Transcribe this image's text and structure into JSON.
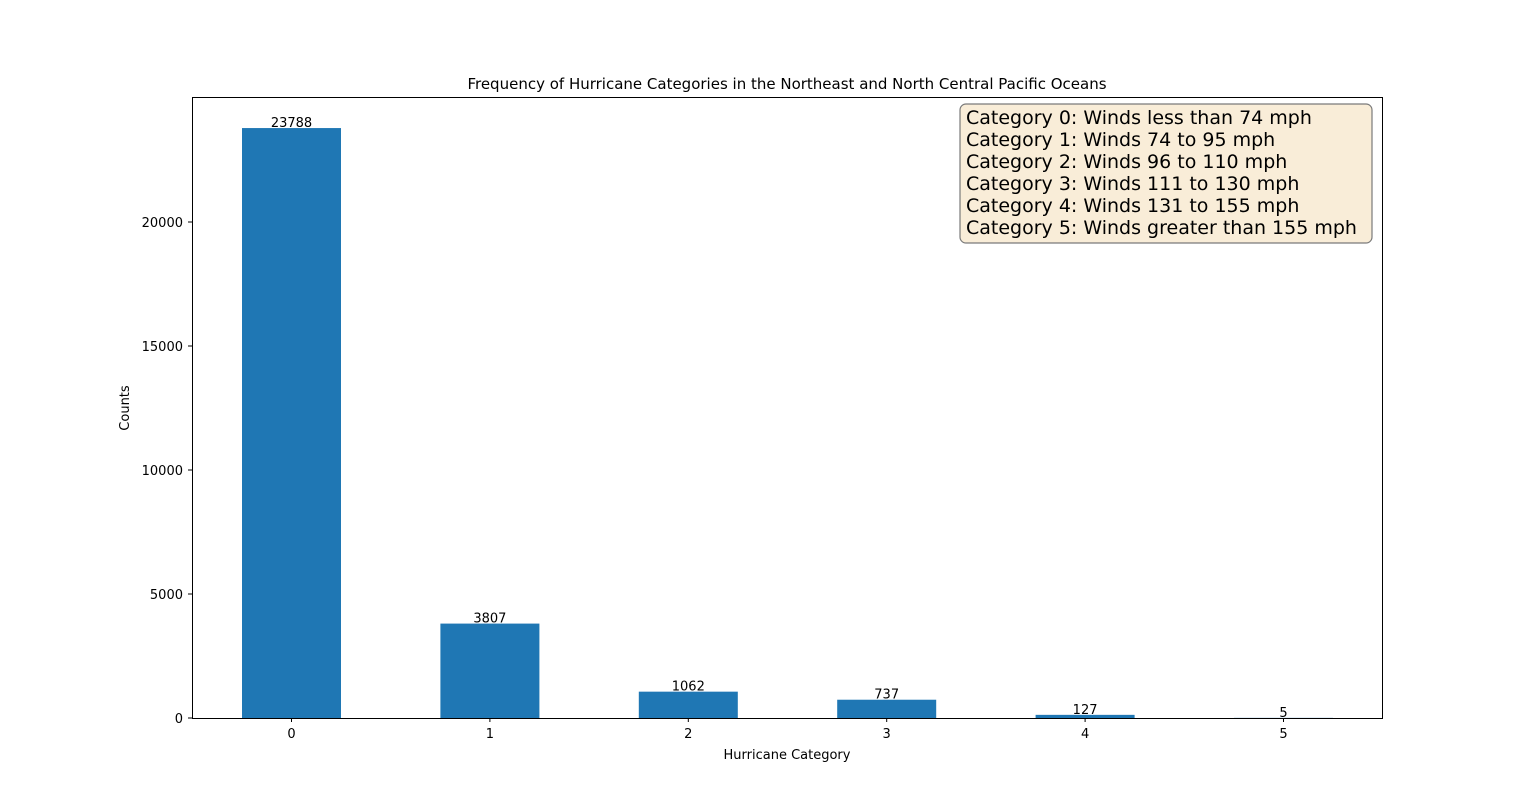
{
  "chart_data": {
    "type": "bar",
    "title": "Frequency of Hurricane Categories in the Northeast and North Central Pacific Oceans",
    "xlabel": "Hurricane Category",
    "ylabel": "Counts",
    "categories": [
      "0",
      "1",
      "2",
      "3",
      "4",
      "5"
    ],
    "values": [
      23788,
      3807,
      1062,
      737,
      127,
      5
    ],
    "data_labels": [
      "23788",
      "3807",
      "1062",
      "737",
      "127",
      "5"
    ],
    "ylim": [
      0,
      25000
    ],
    "yticks": [
      0,
      5000,
      10000,
      15000,
      20000
    ],
    "ytick_labels": [
      "0",
      "5000",
      "10000",
      "15000",
      "20000"
    ],
    "bar_color": "#1f77b4",
    "grid": false,
    "annotation_box": {
      "placement": "top-right",
      "background": "#f9edd8",
      "border": "#7a7a7a",
      "lines": [
        "Category 0: Winds less than 74 mph",
        "Category 1: Winds 74 to 95 mph",
        "Category 2: Winds 96 to 110 mph",
        "Category 3: Winds 111 to 130 mph",
        "Category 4: Winds 131 to 155 mph",
        "Category 5: Winds greater than 155 mph"
      ]
    }
  }
}
